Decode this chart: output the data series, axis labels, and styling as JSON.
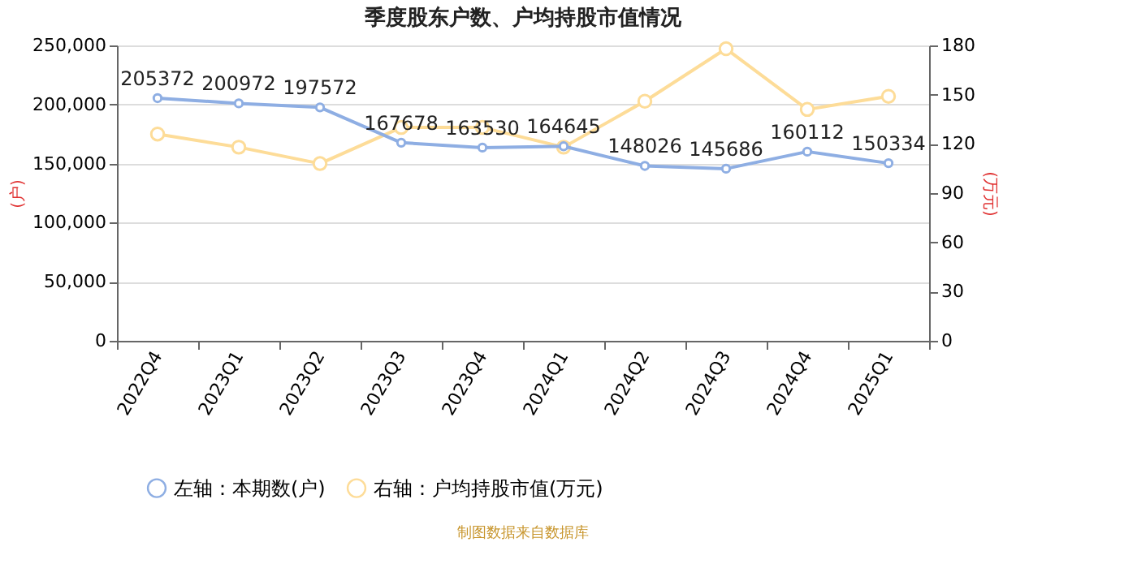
{
  "chart_data": {
    "type": "line",
    "title": "季度股东户数、户均持股市值情况",
    "categories": [
      "2022Q4",
      "2023Q1",
      "2023Q2",
      "2023Q3",
      "2023Q4",
      "2024Q1",
      "2024Q2",
      "2024Q3",
      "2024Q4",
      "2025Q1"
    ],
    "series": [
      {
        "name": "左轴：本期数(户)",
        "color": "#8eaee3",
        "values": [
          205372,
          200972,
          197572,
          167678,
          163530,
          164645,
          148026,
          145686,
          160112,
          150334
        ],
        "value_labels": [
          "205372",
          "200972",
          "197572",
          "167678",
          "163530",
          "164645",
          "148026",
          "145686",
          "160112",
          "150334"
        ]
      },
      {
        "name": "右轴：户均持股市值(万元)",
        "color": "#fddc98",
        "axis": "y2",
        "values": [
          126,
          118,
          108,
          130,
          130,
          118,
          146,
          178,
          141,
          149
        ]
      }
    ],
    "ylabel": "(户)",
    "y2label": "(万元)",
    "ylim": [
      0,
      250000
    ],
    "yticks": [
      {
        "value": 0,
        "label": "0"
      },
      {
        "value": 50000,
        "label": "50,000"
      },
      {
        "value": 100000,
        "label": "100,000"
      },
      {
        "value": 150000,
        "label": "150,000"
      },
      {
        "value": 200000,
        "label": "200,000"
      },
      {
        "value": 250000,
        "label": "250,000"
      }
    ],
    "y2lim": [
      0,
      180
    ],
    "y2ticks": [
      0,
      30,
      60,
      90,
      120,
      150,
      180
    ],
    "grid": "y",
    "legend": "bottom",
    "marker": "circle",
    "line_style": "solid",
    "annotations": [
      "制图数据来自数据库"
    ]
  }
}
